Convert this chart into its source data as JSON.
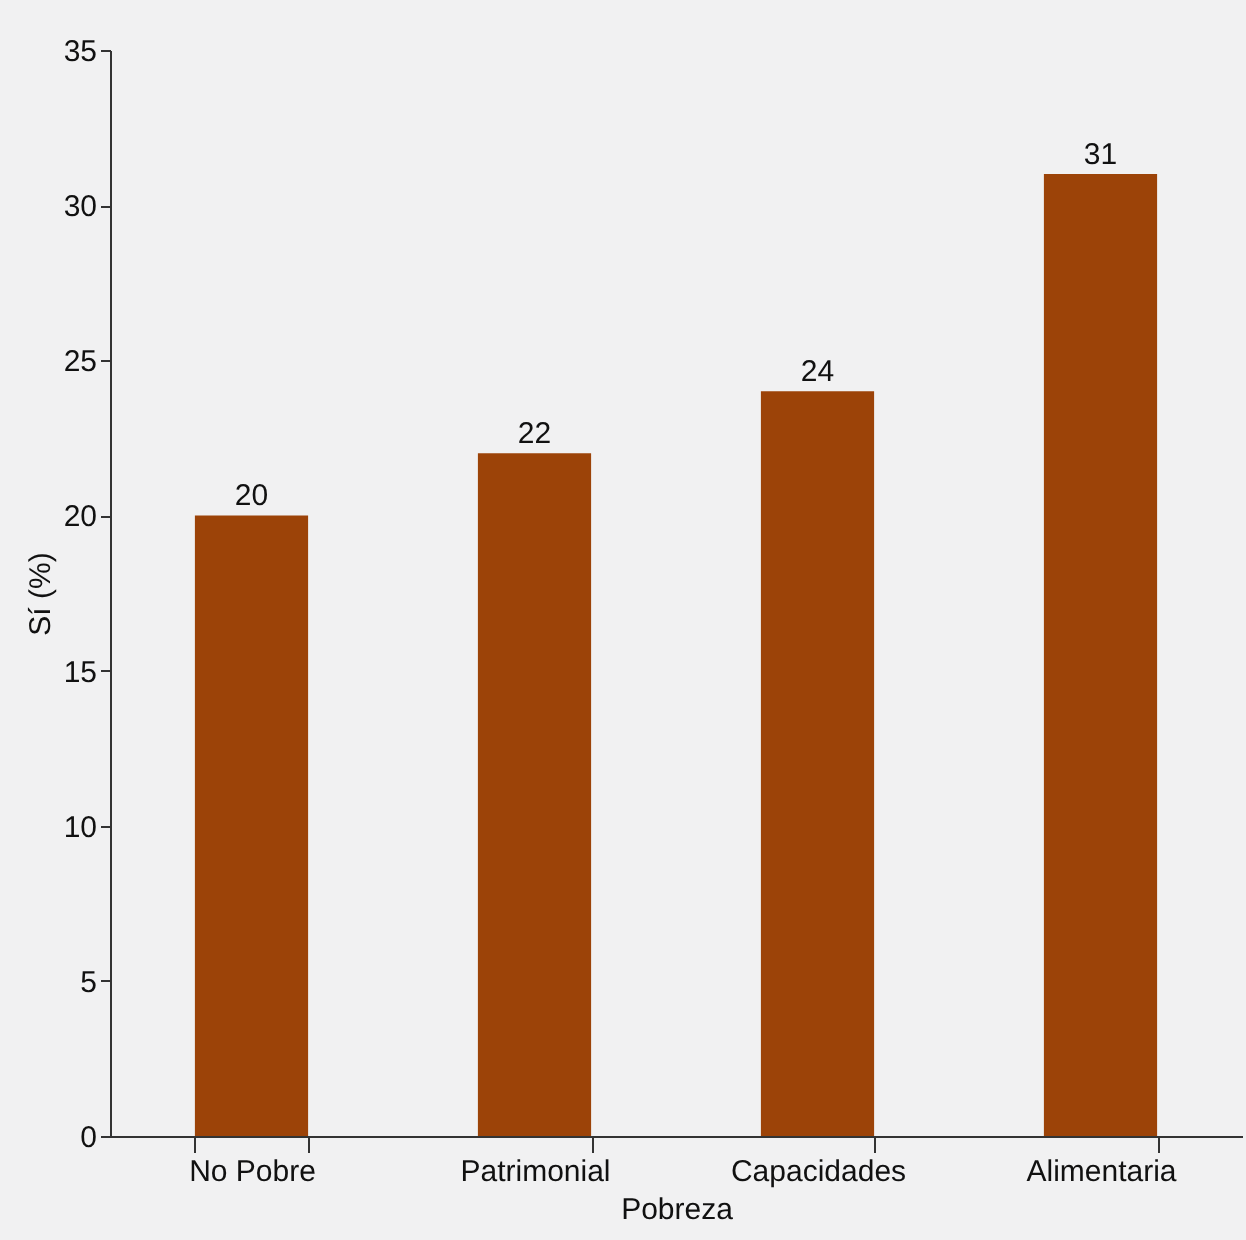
{
  "chart_data": {
    "type": "bar",
    "xlabel": "Pobreza",
    "ylabel": "Sí (%)",
    "categories": [
      "No Pobre",
      "Patrimonial",
      "Capacidades",
      "Alimentaria"
    ],
    "values": [
      20,
      22,
      24,
      31
    ],
    "color": "#9c4308",
    "ylim": [
      0,
      35
    ],
    "yticks": [
      0,
      5,
      10,
      15,
      20,
      25,
      30,
      35
    ],
    "grid": false,
    "data_labels": true
  }
}
